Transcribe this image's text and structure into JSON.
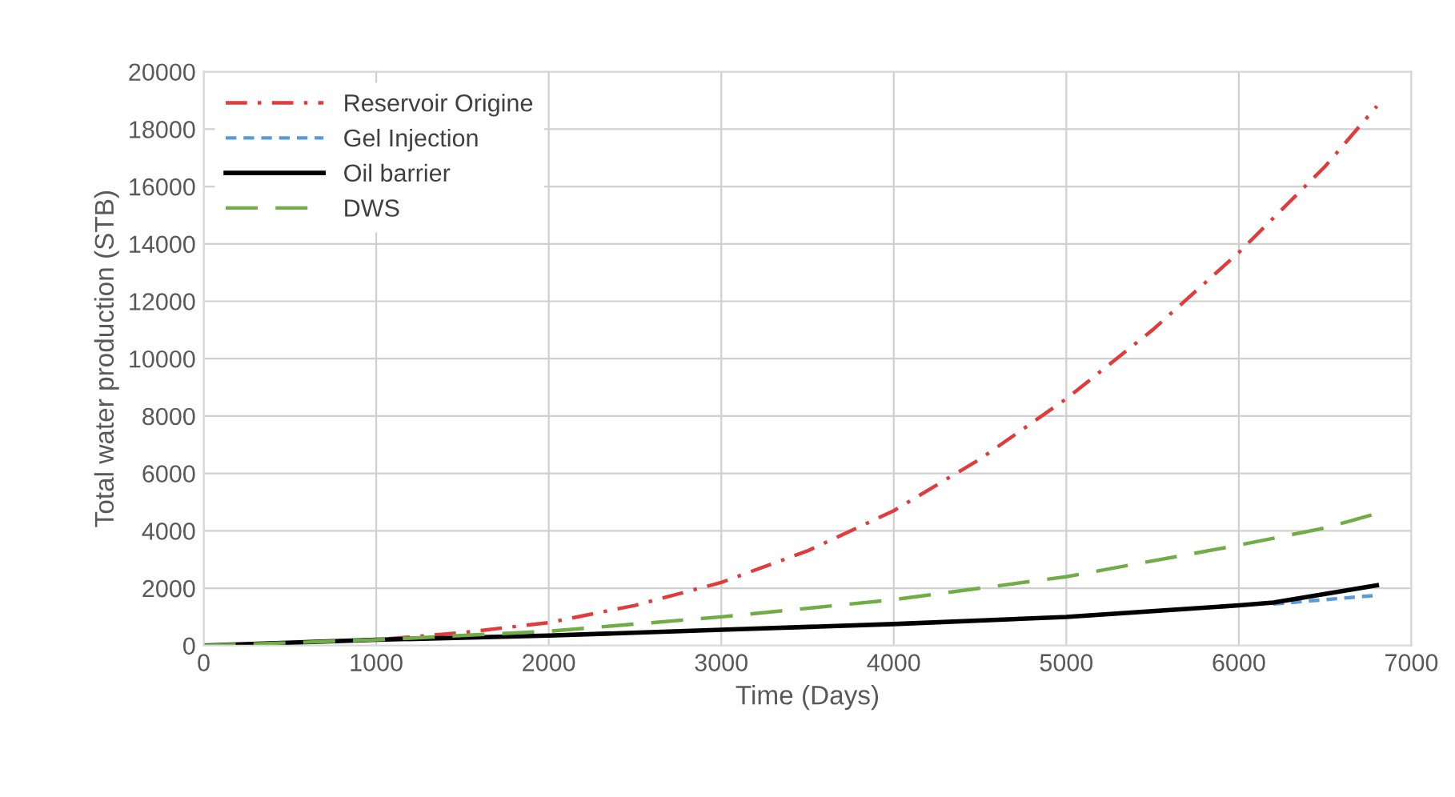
{
  "chart_data": {
    "type": "line",
    "xlabel": "Time (Days)",
    "ylabel": "Total water production (STB)",
    "xlim": [
      0,
      7000
    ],
    "xticks": [
      0,
      1000,
      2000,
      3000,
      4000,
      5000,
      6000,
      7000
    ],
    "ylim": [
      0,
      20000
    ],
    "yticks": [
      0,
      2000,
      4000,
      6000,
      8000,
      10000,
      12000,
      14000,
      16000,
      18000,
      20000
    ],
    "grid": true,
    "legend": "top left",
    "marker": "none",
    "series": [
      {
        "name": "Reservoir Origine",
        "color": "#e03c3c",
        "line_style": "dashdot",
        "x": [
          0,
          1000,
          1500,
          2000,
          2500,
          3000,
          3500,
          4000,
          4500,
          5000,
          5500,
          6000,
          6500,
          6800
        ],
        "values": [
          0,
          200,
          450,
          800,
          1400,
          2200,
          3300,
          4700,
          6500,
          8600,
          11000,
          13700,
          16700,
          18800
        ]
      },
      {
        "name": "Gel Injection",
        "color": "#5b9bd5",
        "line_style": "dashed",
        "x": [
          6200,
          6500,
          6800
        ],
        "values": [
          1450,
          1600,
          1750
        ]
      },
      {
        "name": "Oil barrier",
        "color": "#000000",
        "line_style": "solid",
        "x": [
          0,
          1000,
          2000,
          3000,
          4000,
          5000,
          6000,
          6200,
          6500,
          6800
        ],
        "values": [
          0,
          200,
          350,
          550,
          750,
          1000,
          1400,
          1500,
          1800,
          2100
        ]
      },
      {
        "name": "DWS",
        "color": "#70ad47",
        "line_style": "longdash",
        "x": [
          0,
          1000,
          2000,
          3000,
          4000,
          5000,
          6000,
          6500,
          6800
        ],
        "values": [
          0,
          200,
          500,
          1000,
          1600,
          2400,
          3500,
          4100,
          4600
        ]
      }
    ]
  }
}
